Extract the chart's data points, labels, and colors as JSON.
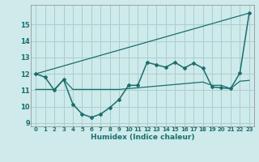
{
  "xlabel": "Humidex (Indice chaleur)",
  "ylabel": "",
  "bg_color": "#ceeaea",
  "grid_color": "#aacece",
  "line_color": "#1a6e6e",
  "xlim": [
    -0.5,
    23.5
  ],
  "ylim": [
    8.8,
    16.2
  ],
  "xticks": [
    0,
    1,
    2,
    3,
    4,
    5,
    6,
    7,
    8,
    9,
    10,
    11,
    12,
    13,
    14,
    15,
    16,
    17,
    18,
    19,
    20,
    21,
    22,
    23
  ],
  "yticks": [
    9,
    10,
    11,
    12,
    13,
    14,
    15
  ],
  "curve1_x": [
    0,
    1,
    2,
    3,
    4,
    5,
    6,
    7,
    8,
    9,
    10,
    11,
    12,
    13,
    14,
    15,
    16,
    17,
    18,
    19,
    20,
    21,
    22,
    23
  ],
  "curve1_y": [
    12.0,
    11.8,
    11.0,
    11.65,
    10.15,
    9.55,
    9.35,
    9.55,
    9.95,
    10.45,
    11.3,
    11.3,
    12.7,
    12.55,
    12.4,
    12.7,
    12.35,
    12.65,
    12.35,
    11.2,
    11.15,
    11.1,
    12.05,
    15.7
  ],
  "curve2_x": [
    0,
    23
  ],
  "curve2_y": [
    12.0,
    15.7
  ],
  "curve3_x": [
    0,
    1,
    2,
    3,
    4,
    5,
    6,
    7,
    8,
    9,
    10,
    11,
    12,
    13,
    14,
    15,
    16,
    17,
    18,
    19,
    20,
    21,
    22,
    23
  ],
  "curve3_y": [
    11.05,
    11.05,
    11.05,
    11.65,
    11.05,
    11.05,
    11.05,
    11.05,
    11.05,
    11.05,
    11.1,
    11.15,
    11.2,
    11.25,
    11.3,
    11.35,
    11.4,
    11.45,
    11.5,
    11.3,
    11.3,
    11.1,
    11.55,
    11.6
  ],
  "xlabel_fontsize": 6.5,
  "ylabel_fontsize": 6.0,
  "xtick_fontsize": 5.0,
  "ytick_fontsize": 6.0
}
